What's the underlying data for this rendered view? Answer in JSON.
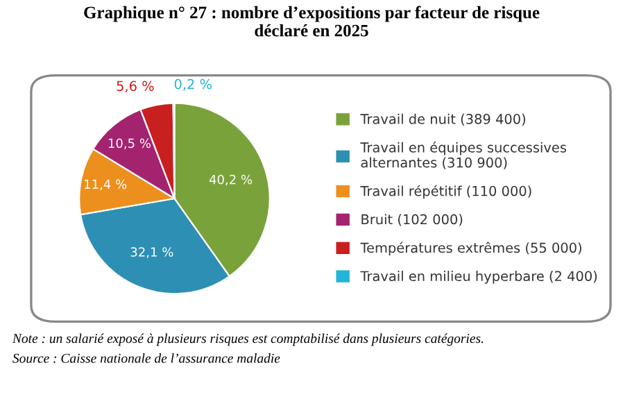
{
  "chart_data": {
    "type": "pie",
    "title": "Graphique n° 27 : nombre d’expositions par facteur de risque\ndéclaré en 2025",
    "categories": [
      "Travail de nuit (389 400)",
      "Travail en équipes successives\nalternantes (310 900)",
      "Travail répétitif (110 000)",
      "Bruit (102 000)",
      "Températures extrêmes (55 000)",
      "Travail en milieu hyperbare (2 400)"
    ],
    "values": [
      40.2,
      32.1,
      11.4,
      10.5,
      5.6,
      0.2
    ],
    "value_labels": [
      "40,2 %",
      "32,1 %",
      "11,4 %",
      "10,5 %",
      "5,6 %",
      "0,2 %"
    ],
    "colors": [
      "#7aa23a",
      "#2e8fb4",
      "#ec8f1c",
      "#a4236f",
      "#c8201f",
      "#22b5d8"
    ],
    "legend": "right",
    "annotations": [
      "Note : un salarié exposé à plusieurs risques est comptabilisé dans plusieurs catégories.",
      "Source : Caisse nationale de l’assurance maladie"
    ]
  }
}
